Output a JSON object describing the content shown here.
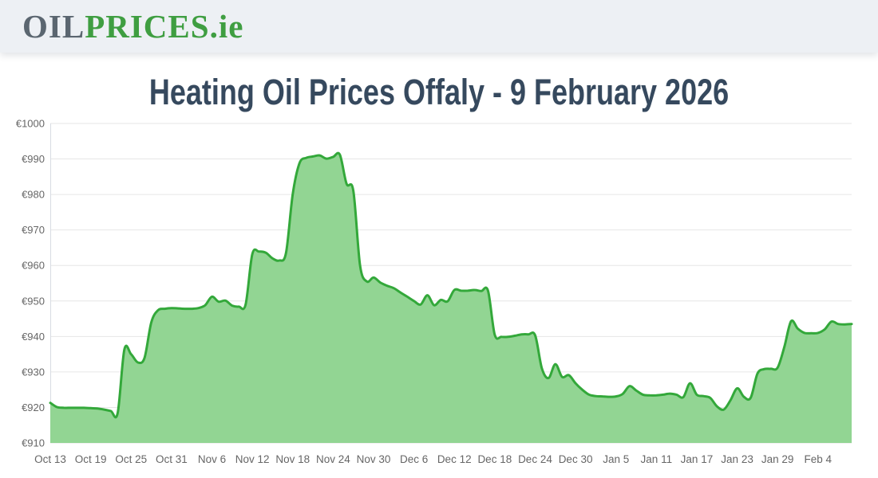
{
  "header": {
    "logo": {
      "oil": "OIL",
      "prices": "PRICES",
      "dot": ".",
      "ie": "ie"
    }
  },
  "title": "Heating Oil Prices Offaly - 9 February 2026",
  "colors": {
    "brand_gray": "#5b6670",
    "brand_green": "#3f9e41",
    "title_color": "#36495e",
    "header_bg": "#edf0f4",
    "line": "#33a83a",
    "fill": "#92d593",
    "grid": "#e6e6e6",
    "axis_line": "#d8dce2",
    "tick_label": "#666666"
  },
  "chart_data": {
    "type": "area",
    "title": "Heating Oil Prices Offaly - 9 February 2026",
    "currency_prefix": "€",
    "ylim": [
      910,
      1000
    ],
    "y_ticks": [
      910,
      920,
      930,
      940,
      950,
      960,
      970,
      980,
      990,
      1000
    ],
    "y_tick_labels": [
      "€910",
      "€920",
      "€930",
      "€940",
      "€950",
      "€960",
      "€970",
      "€980",
      "€990",
      "€1000"
    ],
    "x_tick_labels": [
      "Oct 13",
      "Oct 19",
      "Oct 25",
      "Oct 31",
      "Nov 6",
      "Nov 12",
      "Nov 18",
      "Nov 24",
      "Nov 30",
      "Dec 6",
      "Dec 12",
      "Dec 18",
      "Dec 24",
      "Dec 30",
      "Jan 5",
      "Jan 11",
      "Jan 17",
      "Jan 23",
      "Jan 29",
      "Feb 4"
    ],
    "x_tick_every_n_points": 6,
    "grid": "horizontal",
    "legend": false,
    "values": [
      921.3,
      920.1,
      919.9,
      919.9,
      919.9,
      919.9,
      919.8,
      919.7,
      919.4,
      919.0,
      918.4,
      936.3,
      935.0,
      932.7,
      934.0,
      944.0,
      947.4,
      947.8,
      948.0,
      947.9,
      947.8,
      947.8,
      948.0,
      948.8,
      951.2,
      949.8,
      950.1,
      948.7,
      948.4,
      949.0,
      963.2,
      963.9,
      963.6,
      962.0,
      961.4,
      963.5,
      980.0,
      988.8,
      990.3,
      990.7,
      991.0,
      990.1,
      990.6,
      991.2,
      983.0,
      981.0,
      960.0,
      955.5,
      956.6,
      955.2,
      954.3,
      953.6,
      952.4,
      951.2,
      950.0,
      949.0,
      951.6,
      948.8,
      950.3,
      949.9,
      953.1,
      952.9,
      952.9,
      953.1,
      952.8,
      952.9,
      940.5,
      939.9,
      939.9,
      940.2,
      940.6,
      940.6,
      940.3,
      931.0,
      928.3,
      932.2,
      928.6,
      929.1,
      926.8,
      925.0,
      923.6,
      923.2,
      923.1,
      923.0,
      923.1,
      923.8,
      926.0,
      924.8,
      923.6,
      923.4,
      923.4,
      923.6,
      923.9,
      923.6,
      922.9,
      926.8,
      923.6,
      923.2,
      922.7,
      920.3,
      919.4,
      922.0,
      925.4,
      923.0,
      922.7,
      929.5,
      930.8,
      930.9,
      931.2,
      937.0,
      944.3,
      942.2,
      941.0,
      940.9,
      941.0,
      942.0,
      944.2,
      943.5,
      943.4,
      943.5
    ]
  }
}
